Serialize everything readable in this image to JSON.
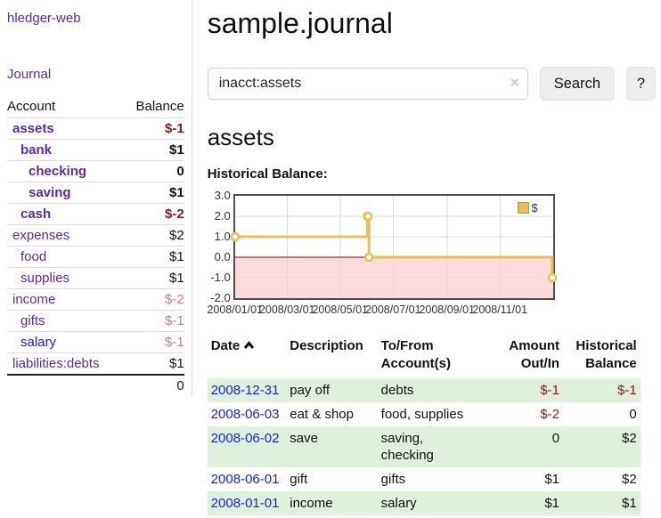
{
  "sidebar": {
    "brand": "hledger-web",
    "journal_link": "Journal",
    "accounts_header": {
      "account": "Account",
      "balance": "Balance"
    },
    "accounts": [
      {
        "name": "assets",
        "balance": "$-1",
        "depth": 1,
        "bold": true,
        "balance_style": "neg"
      },
      {
        "name": "bank",
        "balance": "$1",
        "depth": 2,
        "bold": true
      },
      {
        "name": "checking",
        "balance": "0",
        "depth": 3,
        "bold": true
      },
      {
        "name": "saving",
        "balance": "$1",
        "depth": 3,
        "bold": true
      },
      {
        "name": "cash",
        "balance": "$-2",
        "depth": 2,
        "bold": true,
        "balance_style": "neg"
      },
      {
        "name": "expenses",
        "balance": "$2",
        "depth": 1
      },
      {
        "name": "food",
        "balance": "$1",
        "depth": 2
      },
      {
        "name": "supplies",
        "balance": "$1",
        "depth": 2
      },
      {
        "name": "income",
        "balance": "$-2",
        "depth": 1,
        "balance_style": "negfaded"
      },
      {
        "name": "gifts",
        "balance": "$-1",
        "depth": 2,
        "balance_style": "negfaded"
      },
      {
        "name": "salary",
        "balance": "$-1",
        "depth": 2,
        "balance_style": "negfaded",
        "link_style": "blue"
      },
      {
        "name": "liabilities:debts",
        "balance": "$1",
        "depth": 1
      }
    ],
    "total": "0"
  },
  "main": {
    "title": "sample.journal",
    "search": {
      "value": "inacct:assets",
      "clear_icon": "×",
      "button": "Search",
      "help": "?"
    },
    "account_heading": "assets",
    "chart_label": "Historical Balance:",
    "register": {
      "headers": [
        "Date",
        "Description",
        "To/From Account(s)",
        "Amount Out/In",
        "Historical Balance"
      ],
      "rows": [
        {
          "date": "2008-12-31",
          "description": "pay off",
          "accounts": "debts",
          "amount": "$-1",
          "amount_neg": true,
          "balance": "$-1",
          "balance_neg": true
        },
        {
          "date": "2008-06-03",
          "description": "eat & shop",
          "accounts": "food, supplies",
          "amount": "$-2",
          "amount_neg": true,
          "balance": "0",
          "balance_neg": false
        },
        {
          "date": "2008-06-02",
          "description": "save",
          "accounts": "saving, checking",
          "amount": "0",
          "amount_neg": false,
          "balance": "$2",
          "balance_neg": false
        },
        {
          "date": "2008-06-01",
          "description": "gift",
          "accounts": "gifts",
          "amount": "$1",
          "amount_neg": false,
          "balance": "$2",
          "balance_neg": false
        },
        {
          "date": "2008-01-01",
          "description": "income",
          "accounts": "salary",
          "amount": "$1",
          "amount_neg": false,
          "balance": "$1",
          "balance_neg": false
        }
      ]
    }
  },
  "chart_data": {
    "type": "line",
    "title": "Historical Balance:",
    "step": true,
    "series": [
      {
        "name": "$",
        "color": "#e6c14d",
        "points": [
          [
            "2008-01-01",
            1
          ],
          [
            "2008-06-01",
            2
          ],
          [
            "2008-06-02",
            2
          ],
          [
            "2008-06-03",
            0
          ],
          [
            "2008-12-31",
            -1
          ]
        ]
      }
    ],
    "x_range": [
      "2008-01-01",
      "2009-01-01"
    ],
    "x_ticks": [
      "2008/01/01",
      "2008/03/01",
      "2008/05/01",
      "2008/07/01",
      "2008/09/01",
      "2008/11/01"
    ],
    "y_ticks": [
      "3.0",
      "2.0",
      "1.0",
      "0.0",
      "-1.0",
      "-2.0"
    ],
    "ylim": [
      -2,
      3
    ],
    "grid": true,
    "legend_position": "top-right",
    "negative_fill": "#fbdcdc",
    "zero_line_color": "#8b0000"
  },
  "colors": {
    "link_purple": "#5a2ca0",
    "link_blue": "#2222cc",
    "negative_red": "#8b1a1a",
    "negative_faded": "#c77f7f",
    "row_green": "#dff0dc",
    "series_gold": "#e6c14d",
    "chart_negative_region": "#fbdcdc"
  }
}
